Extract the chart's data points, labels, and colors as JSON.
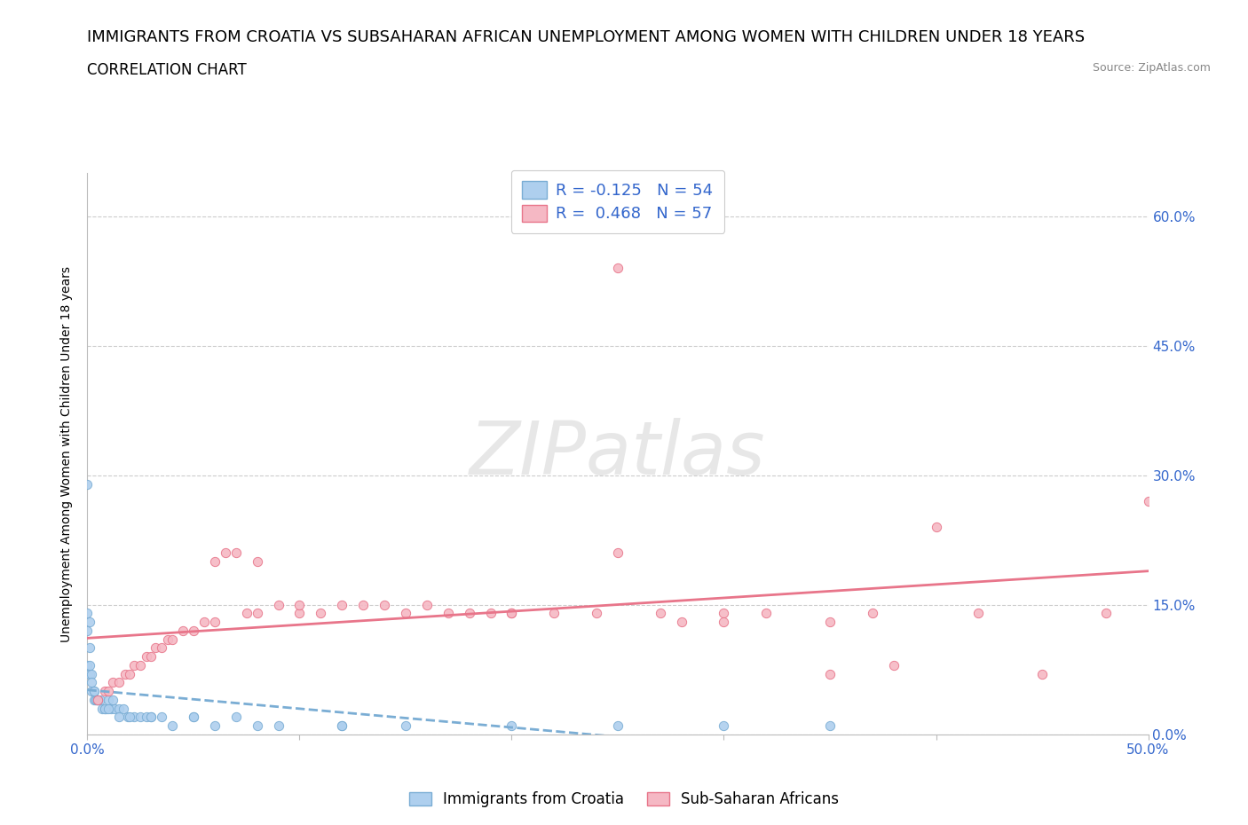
{
  "title": "IMMIGRANTS FROM CROATIA VS SUBSAHARAN AFRICAN UNEMPLOYMENT AMONG WOMEN WITH CHILDREN UNDER 18 YEARS",
  "subtitle": "CORRELATION CHART",
  "source": "Source: ZipAtlas.com",
  "ylabel_text": "Unemployment Among Women with Children Under 18 years",
  "xlim": [
    0,
    0.5
  ],
  "ylim": [
    0,
    0.65
  ],
  "xticks": [
    0.0,
    0.1,
    0.2,
    0.3,
    0.4,
    0.5
  ],
  "xtick_labels": [
    "0.0%",
    "",
    "",
    "",
    "",
    "50.0%"
  ],
  "yticks": [
    0.0,
    0.15,
    0.3,
    0.45,
    0.6
  ],
  "ytick_labels": [
    "0.0%",
    "15.0%",
    "30.0%",
    "45.0%",
    "60.0%"
  ],
  "watermark": "ZIPatlas",
  "color_croatia": "#aecfee",
  "color_croatia_edge": "#7aadd4",
  "color_croatia_line": "#7aadd4",
  "color_subsaharan": "#f5b8c4",
  "color_subsaharan_edge": "#e8758a",
  "color_subsaharan_line": "#e8758a",
  "color_r_value": "#3366cc",
  "croatia_x": [
    0.0,
    0.0,
    0.0,
    0.001,
    0.001,
    0.001,
    0.002,
    0.002,
    0.003,
    0.003,
    0.004,
    0.004,
    0.005,
    0.005,
    0.006,
    0.007,
    0.008,
    0.009,
    0.01,
    0.011,
    0.012,
    0.013,
    0.015,
    0.017,
    0.019,
    0.022,
    0.025,
    0.028,
    0.03,
    0.035,
    0.04,
    0.05,
    0.06,
    0.07,
    0.09,
    0.12,
    0.15,
    0.2,
    0.25,
    0.3,
    0.35,
    0.0,
    0.001,
    0.002,
    0.003,
    0.005,
    0.008,
    0.01,
    0.015,
    0.02,
    0.03,
    0.05,
    0.08,
    0.12
  ],
  "croatia_y": [
    0.29,
    0.14,
    0.12,
    0.13,
    0.1,
    0.07,
    0.07,
    0.05,
    0.05,
    0.04,
    0.04,
    0.04,
    0.04,
    0.04,
    0.04,
    0.03,
    0.03,
    0.03,
    0.04,
    0.03,
    0.04,
    0.03,
    0.03,
    0.03,
    0.02,
    0.02,
    0.02,
    0.02,
    0.02,
    0.02,
    0.01,
    0.02,
    0.01,
    0.02,
    0.01,
    0.01,
    0.01,
    0.01,
    0.01,
    0.01,
    0.01,
    0.08,
    0.08,
    0.06,
    0.05,
    0.04,
    0.03,
    0.03,
    0.02,
    0.02,
    0.02,
    0.02,
    0.01,
    0.01
  ],
  "subsaharan_x": [
    0.005,
    0.008,
    0.01,
    0.012,
    0.015,
    0.018,
    0.02,
    0.022,
    0.025,
    0.028,
    0.03,
    0.032,
    0.035,
    0.038,
    0.04,
    0.045,
    0.05,
    0.055,
    0.06,
    0.065,
    0.07,
    0.075,
    0.08,
    0.09,
    0.1,
    0.11,
    0.12,
    0.13,
    0.14,
    0.15,
    0.16,
    0.17,
    0.18,
    0.19,
    0.2,
    0.22,
    0.24,
    0.25,
    0.27,
    0.28,
    0.3,
    0.32,
    0.35,
    0.37,
    0.4,
    0.42,
    0.45,
    0.48,
    0.5,
    0.25,
    0.3,
    0.38,
    0.2,
    0.1,
    0.06,
    0.08,
    0.35
  ],
  "subsaharan_y": [
    0.04,
    0.05,
    0.05,
    0.06,
    0.06,
    0.07,
    0.07,
    0.08,
    0.08,
    0.09,
    0.09,
    0.1,
    0.1,
    0.11,
    0.11,
    0.12,
    0.12,
    0.13,
    0.13,
    0.21,
    0.21,
    0.14,
    0.14,
    0.15,
    0.14,
    0.14,
    0.15,
    0.15,
    0.15,
    0.14,
    0.15,
    0.14,
    0.14,
    0.14,
    0.14,
    0.14,
    0.14,
    0.54,
    0.14,
    0.13,
    0.14,
    0.14,
    0.13,
    0.14,
    0.24,
    0.14,
    0.07,
    0.14,
    0.27,
    0.21,
    0.13,
    0.08,
    0.14,
    0.15,
    0.2,
    0.2,
    0.07
  ],
  "grid_color": "#cccccc",
  "background_color": "#ffffff",
  "title_fontsize": 13,
  "subtitle_fontsize": 12,
  "source_fontsize": 9,
  "axis_label_fontsize": 10,
  "tick_fontsize": 11,
  "legend_fontsize": 13
}
